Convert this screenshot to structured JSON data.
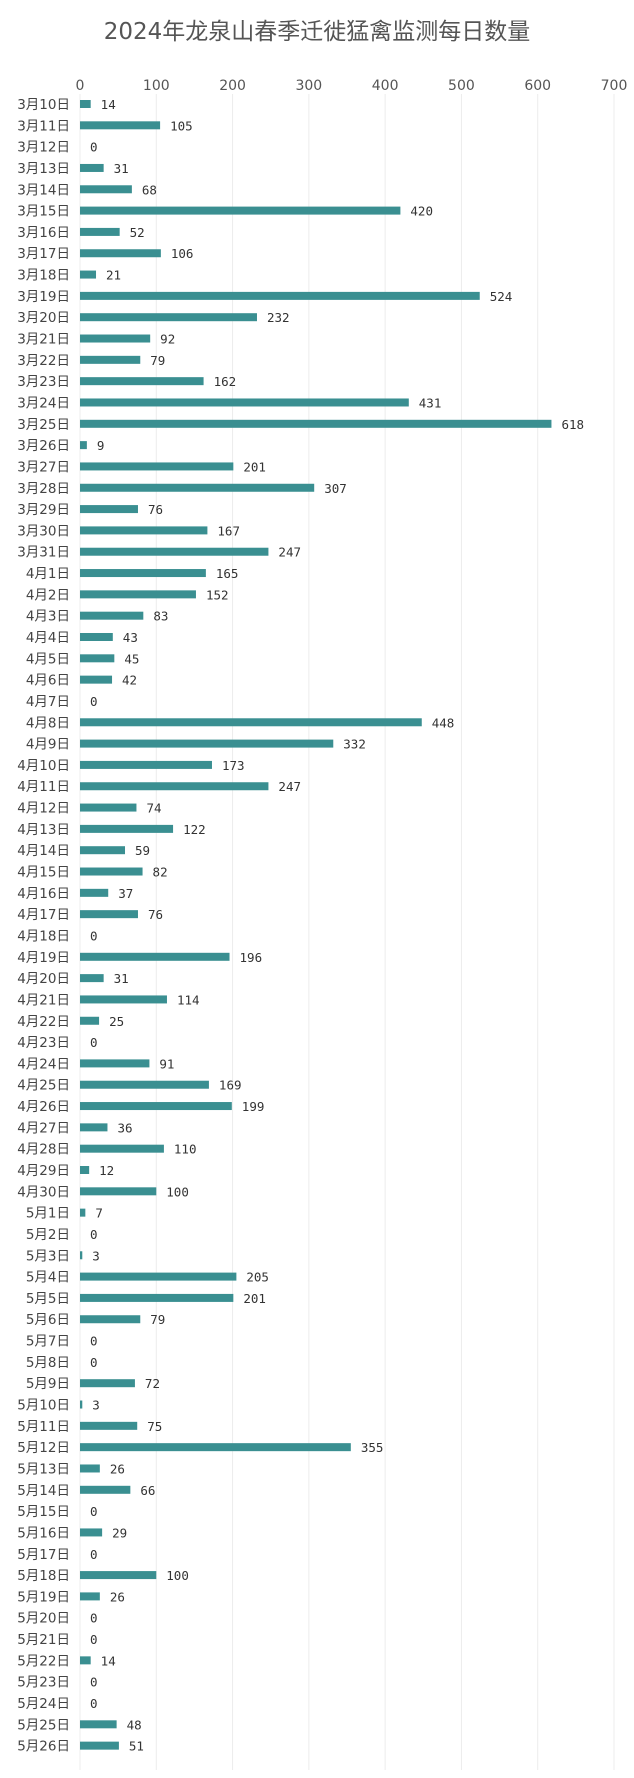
{
  "chart_data": {
    "type": "bar",
    "orientation": "horizontal",
    "title": "2024年龙泉山春季迁徙猛禽监测每日数量",
    "xlabel": "",
    "ylabel": "",
    "xlim": [
      0,
      700
    ],
    "x_ticks": [
      "0",
      "100",
      "200",
      "300",
      "400",
      "500",
      "600",
      "700"
    ],
    "grid": "vertical",
    "bar_color": "#3a8f91",
    "categories": [
      "3月10日",
      "3月11日",
      "3月12日",
      "3月13日",
      "3月14日",
      "3月15日",
      "3月16日",
      "3月17日",
      "3月18日",
      "3月19日",
      "3月20日",
      "3月21日",
      "3月22日",
      "3月23日",
      "3月24日",
      "3月25日",
      "3月26日",
      "3月27日",
      "3月28日",
      "3月29日",
      "3月30日",
      "3月31日",
      "4月1日",
      "4月2日",
      "4月3日",
      "4月4日",
      "4月5日",
      "4月6日",
      "4月7日",
      "4月8日",
      "4月9日",
      "4月10日",
      "4月11日",
      "4月12日",
      "4月13日",
      "4月14日",
      "4月15日",
      "4月16日",
      "4月17日",
      "4月18日",
      "4月19日",
      "4月20日",
      "4月21日",
      "4月22日",
      "4月23日",
      "4月24日",
      "4月25日",
      "4月26日",
      "4月27日",
      "4月28日",
      "4月29日",
      "4月30日",
      "5月1日",
      "5月2日",
      "5月3日",
      "5月4日",
      "5月5日",
      "5月6日",
      "5月7日",
      "5月8日",
      "5月9日",
      "5月10日",
      "5月11日",
      "5月12日",
      "5月13日",
      "5月14日",
      "5月15日",
      "5月16日",
      "5月17日",
      "5月18日",
      "5月19日",
      "5月20日",
      "5月21日",
      "5月22日",
      "5月23日",
      "5月24日",
      "5月25日",
      "5月26日"
    ],
    "values": [
      14,
      105,
      0,
      31,
      68,
      420,
      52,
      106,
      21,
      524,
      232,
      92,
      79,
      162,
      431,
      618,
      9,
      201,
      307,
      76,
      167,
      247,
      165,
      152,
      83,
      43,
      45,
      42,
      0,
      448,
      332,
      173,
      247,
      74,
      122,
      59,
      82,
      37,
      76,
      0,
      196,
      31,
      114,
      25,
      0,
      91,
      169,
      199,
      36,
      110,
      12,
      100,
      7,
      0,
      3,
      205,
      201,
      79,
      0,
      0,
      72,
      3,
      75,
      355,
      26,
      66,
      0,
      29,
      0,
      100,
      26,
      0,
      0,
      14,
      0,
      0,
      48,
      51
    ]
  }
}
